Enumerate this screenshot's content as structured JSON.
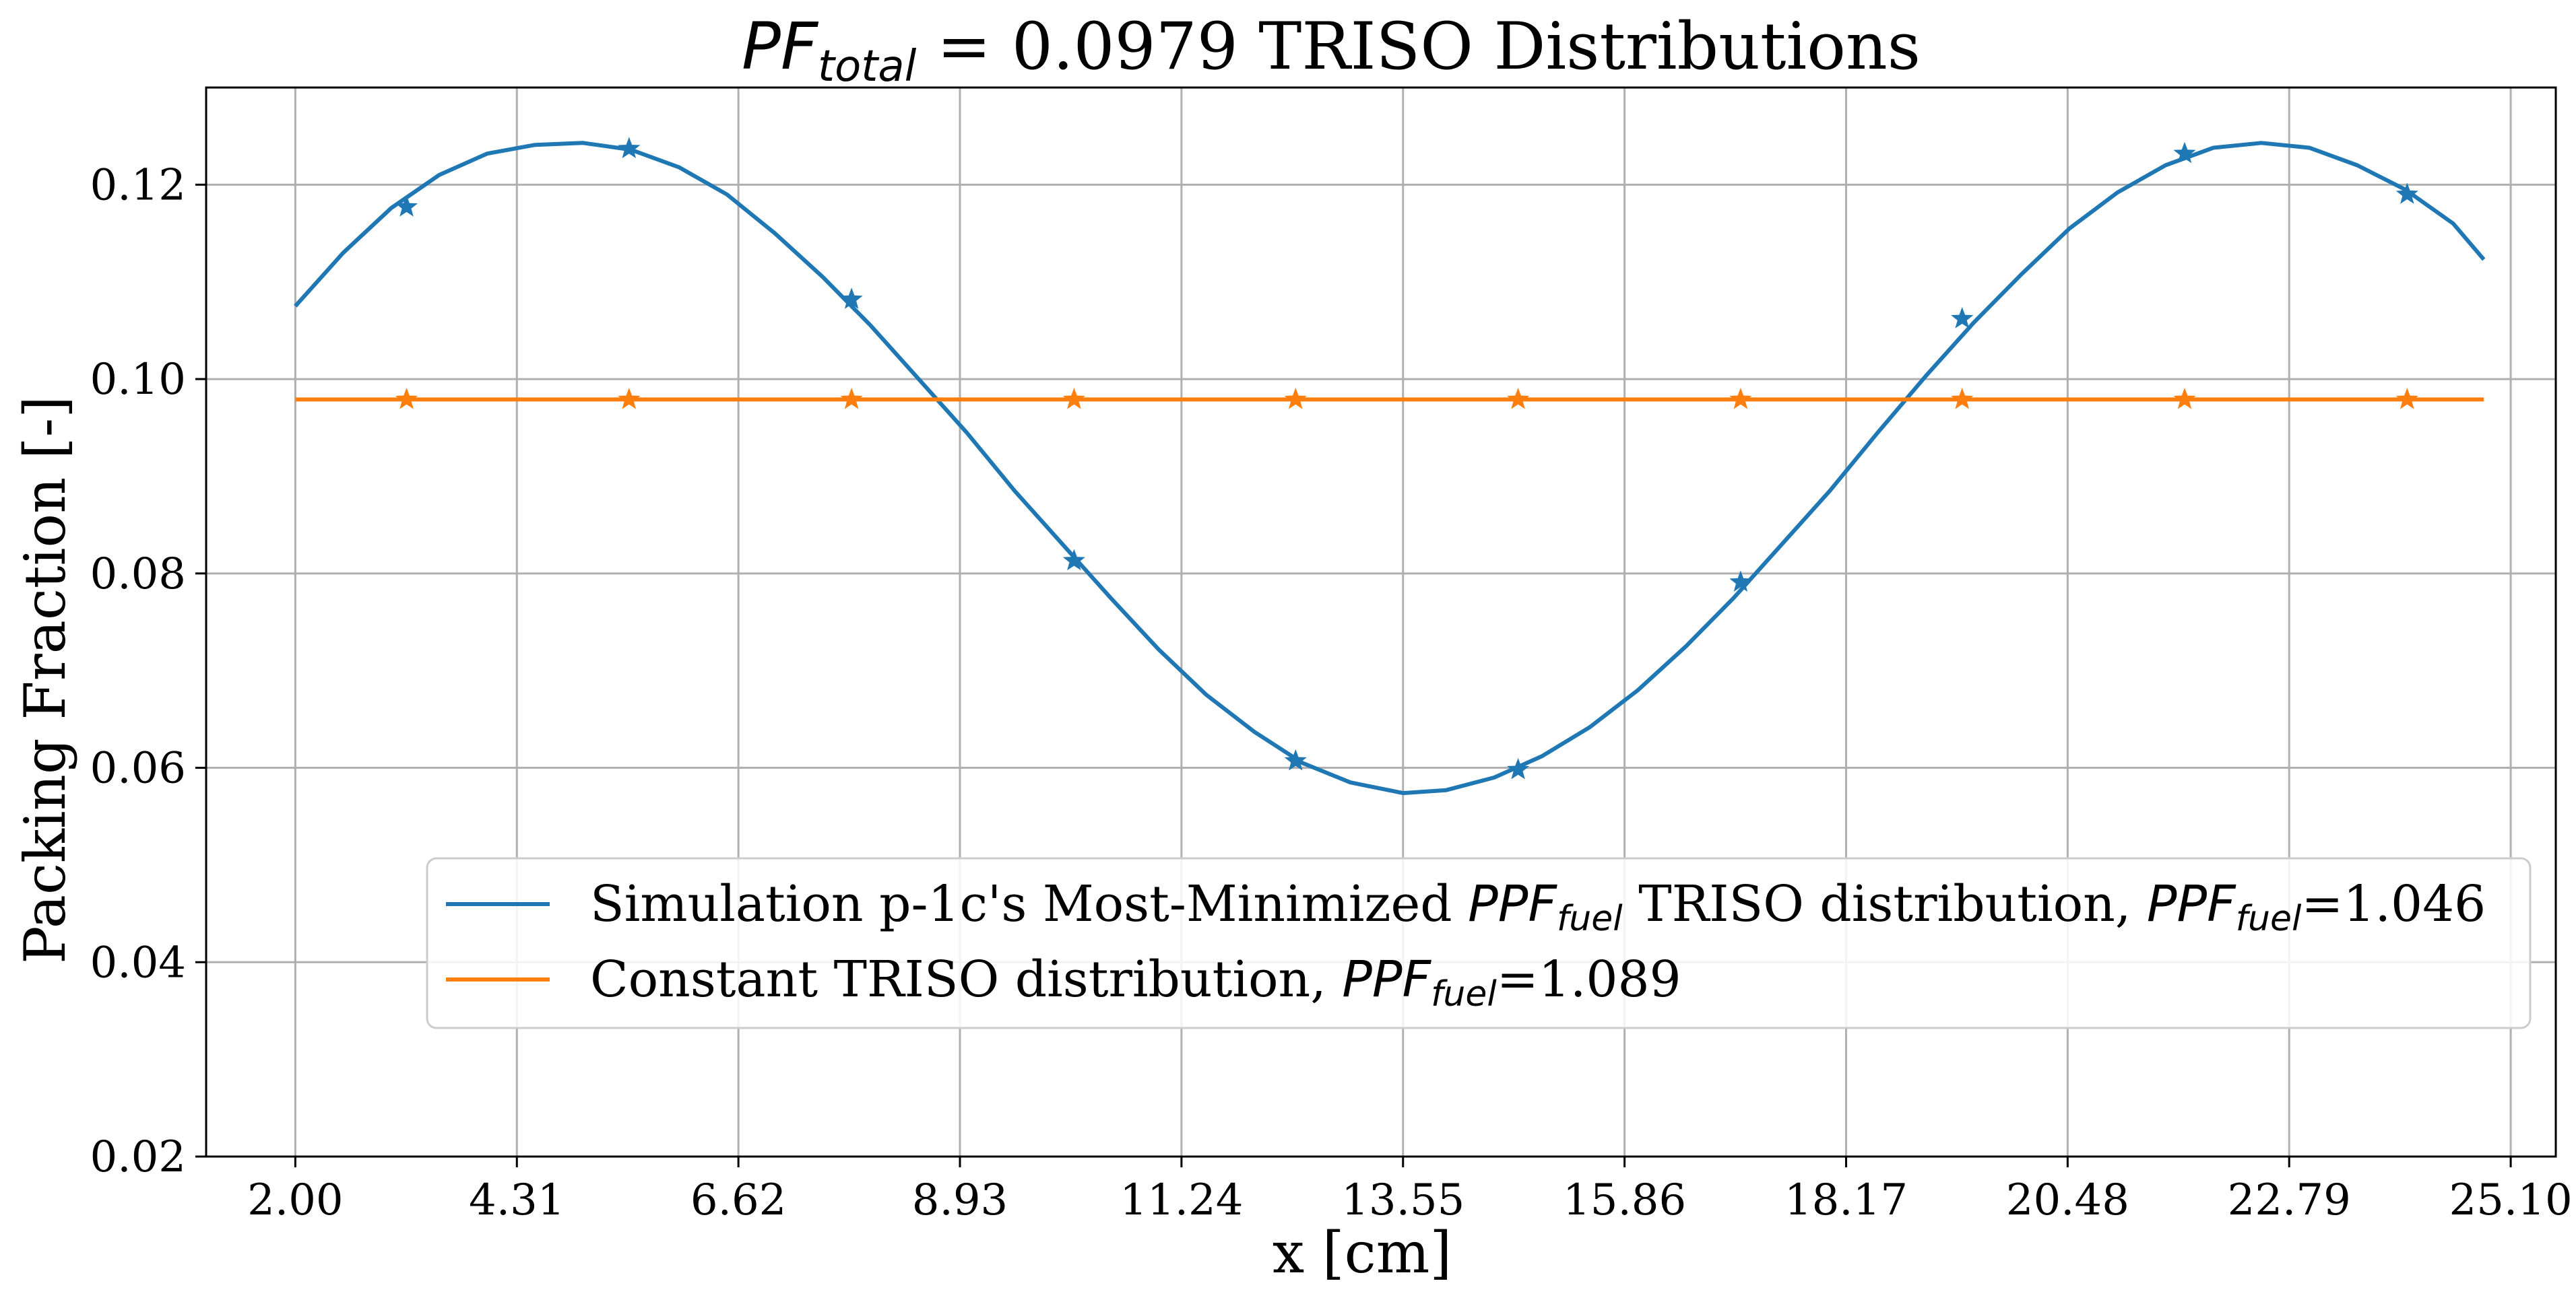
{
  "chart_data": {
    "type": "line",
    "title": {
      "prefix": "PF",
      "subscript": "total",
      "suffix": " = 0.0979 TRISO Distributions"
    },
    "xlabel": "x [cm]",
    "ylabel": "Packing Fraction [-]",
    "xlim": [
      1.07,
      25.57
    ],
    "ylim": [
      0.02,
      0.13
    ],
    "xticks": [
      2.0,
      4.31,
      6.62,
      8.93,
      11.24,
      13.55,
      15.86,
      18.17,
      20.48,
      22.79,
      25.1
    ],
    "xtick_labels": [
      "2.00",
      "4.31",
      "6.62",
      "8.93",
      "11.24",
      "13.55",
      "15.86",
      "18.17",
      "20.48",
      "22.79",
      "25.10"
    ],
    "yticks": [
      0.02,
      0.04,
      0.06,
      0.08,
      0.1,
      0.12
    ],
    "ytick_labels": [
      "0.02",
      "0.04",
      "0.06",
      "0.08",
      "0.10",
      "0.12"
    ],
    "grid": true,
    "legend_placement": "lower-right",
    "series": [
      {
        "color": "#1f77b4",
        "marker": "star",
        "legend": {
          "text1": "Simulation p-1c's Most-Minimized ",
          "sym1": "PPF",
          "sub1": "fuel",
          "text2": " TRISO distribution, ",
          "sym2": "PPF",
          "sub2": "fuel",
          "text3": "=1.046"
        },
        "line_points": [
          [
            2.0,
            0.1075
          ],
          [
            2.5,
            0.113
          ],
          [
            3.0,
            0.1176
          ],
          [
            3.5,
            0.121
          ],
          [
            4.0,
            0.1232
          ],
          [
            4.5,
            0.1241
          ],
          [
            5.0,
            0.1243
          ],
          [
            5.5,
            0.1236
          ],
          [
            6.0,
            0.1218
          ],
          [
            6.5,
            0.119
          ],
          [
            7.0,
            0.115
          ],
          [
            7.5,
            0.1105
          ],
          [
            8.0,
            0.1055
          ],
          [
            8.5,
            0.1
          ],
          [
            9.0,
            0.0945
          ],
          [
            9.5,
            0.0885
          ],
          [
            10.0,
            0.083
          ],
          [
            10.5,
            0.0775
          ],
          [
            11.0,
            0.0722
          ],
          [
            11.5,
            0.0675
          ],
          [
            12.0,
            0.0637
          ],
          [
            12.5,
            0.0605
          ],
          [
            13.0,
            0.0585
          ],
          [
            13.55,
            0.0574
          ],
          [
            14.0,
            0.0577
          ],
          [
            14.5,
            0.059
          ],
          [
            15.0,
            0.0612
          ],
          [
            15.5,
            0.0642
          ],
          [
            16.0,
            0.068
          ],
          [
            16.5,
            0.0725
          ],
          [
            17.0,
            0.0775
          ],
          [
            17.5,
            0.083
          ],
          [
            18.0,
            0.0885
          ],
          [
            18.5,
            0.0945
          ],
          [
            19.0,
            0.1003
          ],
          [
            19.5,
            0.1058
          ],
          [
            20.0,
            0.1108
          ],
          [
            20.5,
            0.1155
          ],
          [
            21.0,
            0.1192
          ],
          [
            21.5,
            0.122
          ],
          [
            22.0,
            0.1238
          ],
          [
            22.5,
            0.1243
          ],
          [
            23.0,
            0.1238
          ],
          [
            23.5,
            0.122
          ],
          [
            24.0,
            0.1195
          ],
          [
            24.5,
            0.116
          ],
          [
            24.82,
            0.1123
          ]
        ],
        "markers": [
          [
            3.16,
            0.1177
          ],
          [
            5.48,
            0.1237
          ],
          [
            7.8,
            0.1082
          ],
          [
            10.12,
            0.0813
          ],
          [
            12.43,
            0.0607
          ],
          [
            14.75,
            0.0598
          ],
          [
            17.07,
            0.0791
          ],
          [
            19.38,
            0.1062
          ],
          [
            21.7,
            0.1232
          ],
          [
            24.02,
            0.119
          ]
        ]
      },
      {
        "color": "#ff7f0e",
        "marker": "star",
        "legend": {
          "text1": "Constant TRISO distribution, ",
          "sym1": "PPF",
          "sub1": "fuel",
          "text3": "=1.089"
        },
        "line_points": [
          [
            2.0,
            0.0979
          ],
          [
            24.82,
            0.0979
          ]
        ],
        "markers": [
          [
            3.16,
            0.0979
          ],
          [
            5.48,
            0.0979
          ],
          [
            7.8,
            0.0979
          ],
          [
            10.12,
            0.0979
          ],
          [
            12.43,
            0.0979
          ],
          [
            14.75,
            0.0979
          ],
          [
            17.07,
            0.0979
          ],
          [
            19.38,
            0.0979
          ],
          [
            21.7,
            0.0979
          ],
          [
            24.02,
            0.0979
          ]
        ]
      }
    ]
  }
}
